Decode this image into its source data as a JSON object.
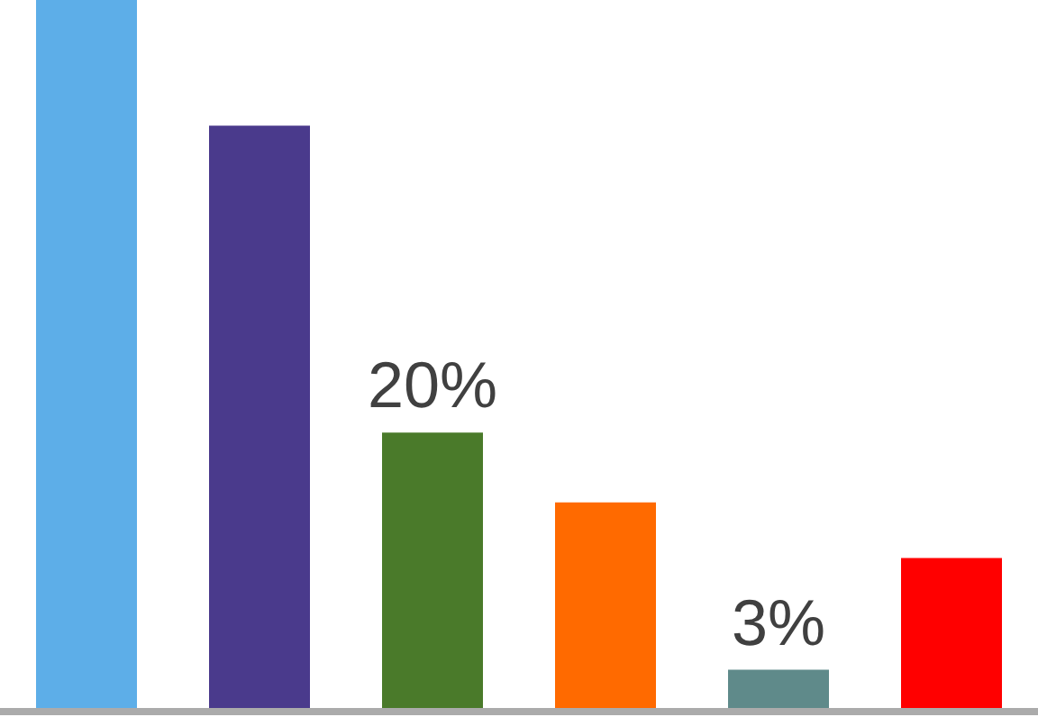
{
  "chart_data": {
    "type": "bar",
    "categories": [
      null,
      null,
      null,
      null,
      null,
      null
    ],
    "values": [
      51,
      42,
      20,
      15,
      3,
      11
    ],
    "colors": [
      "#5daee8",
      "#4a3a8c",
      "#4a7a2a",
      "#ff6a00",
      "#5f8a8a",
      "#ff0000"
    ],
    "value_labels": [
      null,
      null,
      "20%",
      null,
      "3%",
      null
    ],
    "ylim": [
      0,
      51
    ]
  }
}
